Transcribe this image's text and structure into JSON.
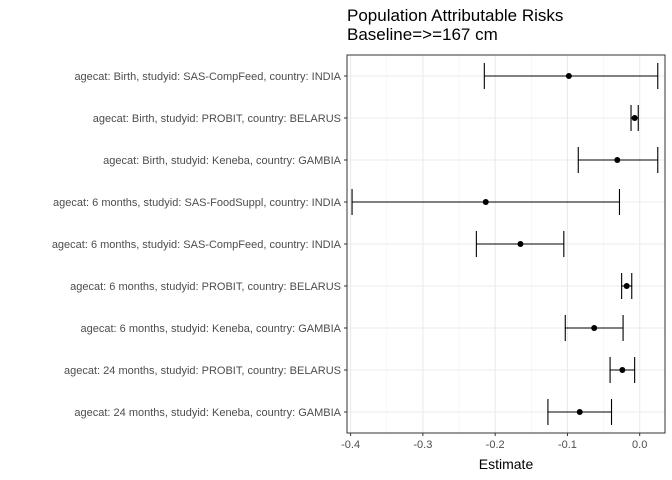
{
  "chart_data": {
    "type": "forest",
    "title": "Population Attributable Risks",
    "subtitle": "Baseline=>=167 cm",
    "xlabel": "Estimate",
    "xlim": [
      -0.405,
      0.035
    ],
    "xticks": [
      -0.4,
      -0.3,
      -0.2,
      -0.1,
      0.0
    ],
    "xtick_labels": [
      "-0.4",
      "-0.3",
      "-0.2",
      "-0.1",
      "0.0"
    ],
    "grid": true,
    "categories": [
      "agecat: Birth, studyid: SAS-CompFeed, country: INDIA",
      "agecat: Birth, studyid: PROBIT, country: BELARUS",
      "agecat: Birth, studyid: Keneba, country: GAMBIA",
      "agecat: 6 months, studyid: SAS-FoodSuppl, country: INDIA",
      "agecat: 6 months, studyid: SAS-CompFeed, country: INDIA",
      "agecat: 6 months, studyid: PROBIT, country: BELARUS",
      "agecat: 6 months, studyid: Keneba, country: GAMBIA",
      "agecat: 24 months, studyid: PROBIT, country: BELARUS",
      "agecat: 24 months, studyid: Keneba, country: GAMBIA"
    ],
    "estimate": [
      -0.098,
      -0.007,
      -0.031,
      -0.213,
      -0.165,
      -0.018,
      -0.063,
      -0.024,
      -0.083
    ],
    "lower": [
      -0.215,
      -0.012,
      -0.085,
      -0.398,
      -0.226,
      -0.025,
      -0.103,
      -0.041,
      -0.127
    ],
    "upper": [
      0.025,
      -0.002,
      0.025,
      -0.028,
      -0.105,
      -0.011,
      -0.023,
      -0.007,
      -0.039
    ]
  }
}
